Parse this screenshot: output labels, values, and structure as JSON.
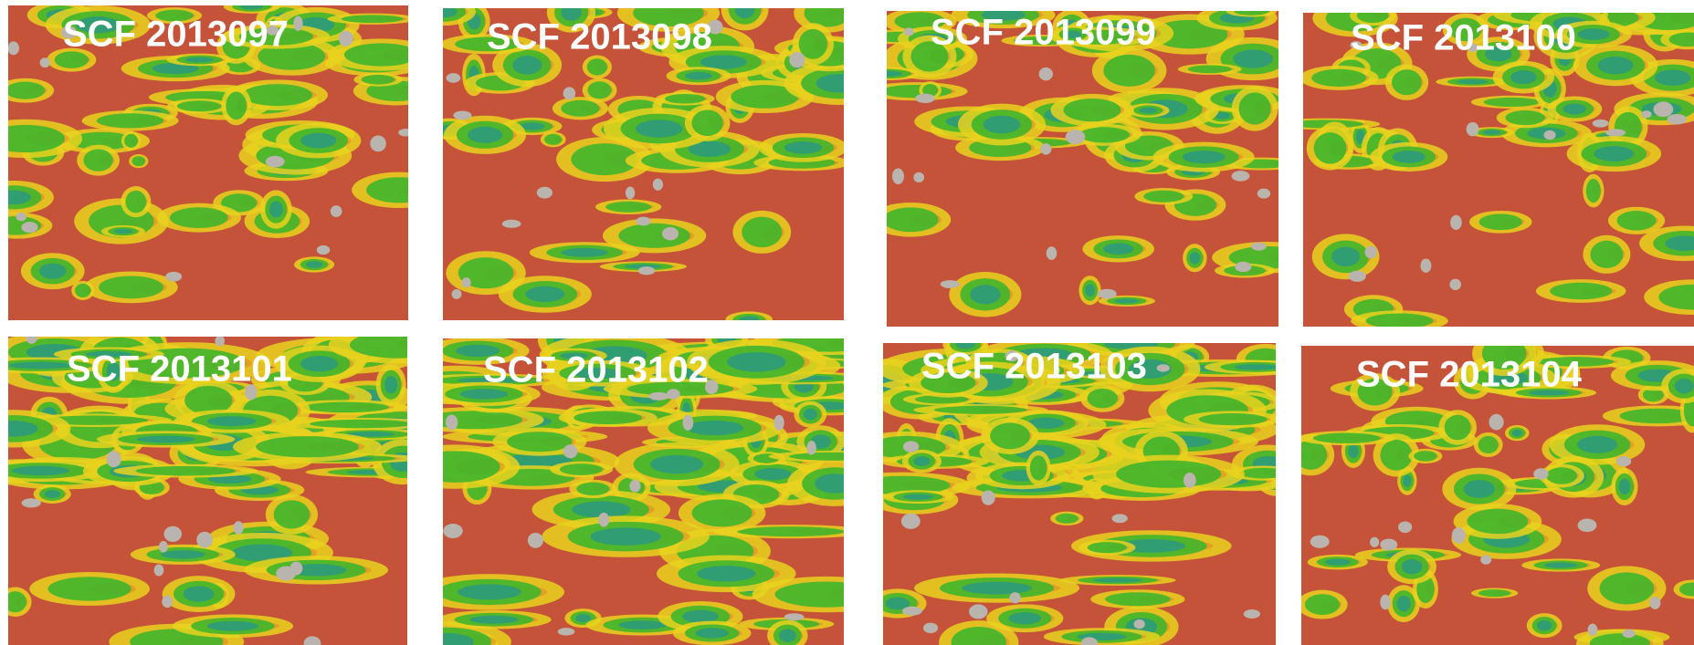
{
  "panels": [
    {
      "label": "SCF 2013097"
    },
    {
      "label": "SCF 2013098"
    },
    {
      "label": "SCF 2013099"
    },
    {
      "label": "SCF 2013100"
    },
    {
      "label": "SCF 2013101"
    },
    {
      "label": "SCF 2013102"
    },
    {
      "label": "SCF 2013103"
    },
    {
      "label": "SCF 2013104"
    }
  ]
}
